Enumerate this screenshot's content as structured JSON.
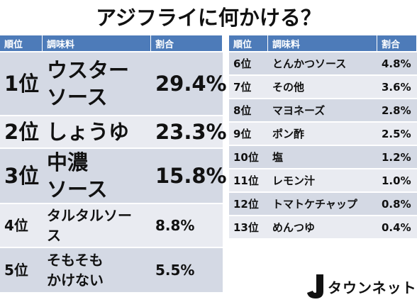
{
  "title": "アジフライに何かける？",
  "left_table": {
    "headers": [
      "順位",
      "調味料",
      "割合"
    ],
    "rows": [
      [
        "1位",
        "ウスター\nソース",
        "29.4%"
      ],
      [
        "2位",
        "しょうゆ",
        "23.3%"
      ],
      [
        "3位",
        "中濃\nソース",
        "15.8%"
      ],
      [
        "4位",
        "タルタルソー\nス",
        "8.8%"
      ],
      [
        "5位",
        "そもそも\nかけない",
        "5.5%"
      ]
    ]
  },
  "right_table": {
    "headers": [
      "順位",
      "調味料",
      "割合"
    ],
    "rows": [
      [
        "6位",
        "とんかつソース",
        "4.8%"
      ],
      [
        "7位",
        "その他",
        "3.6%"
      ],
      [
        "8位",
        "マヨネーズ",
        "2.8%"
      ],
      [
        "9位",
        "ポン酢",
        "2.5%"
      ],
      [
        "10位",
        "塩",
        "1.2%"
      ],
      [
        "11位",
        "レモン汁",
        "1.0%"
      ],
      [
        "12位",
        "トマトケチャップ",
        "0.8%"
      ],
      [
        "13位",
        "めんつゆ",
        "0.4%"
      ]
    ]
  },
  "logo": "タウンネット"
}
